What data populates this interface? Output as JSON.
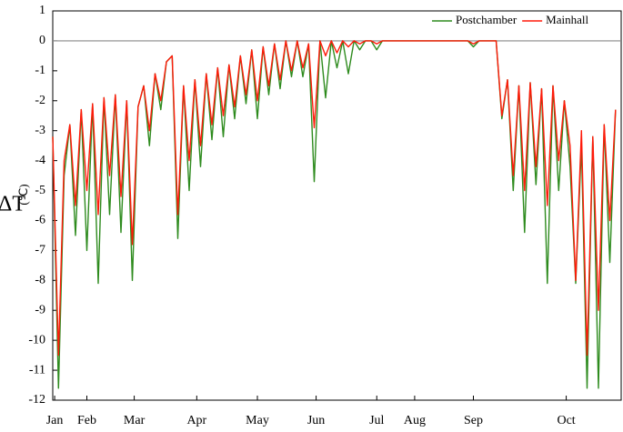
{
  "chart_data": {
    "type": "line",
    "y_label": "ΔT",
    "y_label_unit": "(℃)",
    "x": [
      0,
      3,
      6,
      9,
      12,
      15,
      18,
      21,
      24,
      27,
      30,
      33,
      36,
      39,
      42,
      45,
      48,
      51,
      54,
      57,
      60,
      63,
      66,
      69,
      72,
      75,
      78,
      81,
      84,
      87,
      90,
      93,
      96,
      99,
      102,
      105,
      108,
      111,
      114,
      117,
      120,
      123,
      126,
      129,
      132,
      135,
      138,
      141,
      144,
      147,
      150,
      153,
      156,
      159,
      162,
      165,
      168,
      171,
      174,
      177,
      180,
      183,
      186,
      189,
      192,
      195,
      198,
      201,
      204,
      207,
      210,
      213,
      216,
      219,
      222,
      225,
      228,
      231,
      234,
      237,
      240,
      243,
      246,
      249,
      252,
      255,
      258,
      261,
      264,
      267,
      270,
      273,
      276,
      279,
      282,
      285,
      288,
      291,
      294,
      297
    ],
    "series": [
      {
        "name": "Postchamber",
        "color": "#2e8b1e",
        "values": [
          -3.2,
          -11.6,
          -4.5,
          -2.8,
          -6.5,
          -2.3,
          -7,
          -2.1,
          -8.1,
          -1.9,
          -5.8,
          -1.8,
          -6.4,
          -2,
          -8,
          -2.2,
          -1.5,
          -3.5,
          -1.1,
          -2.3,
          -0.7,
          -0.5,
          -6.6,
          -1.5,
          -5,
          -1.3,
          -4.2,
          -1.1,
          -3.3,
          -0.9,
          -3.2,
          -0.8,
          -2.6,
          -0.5,
          -2.1,
          -0.3,
          -2.6,
          -0.2,
          -1.8,
          -0.1,
          -1.6,
          0,
          -1.2,
          0,
          -1.2,
          -0.1,
          -4.7,
          0,
          -1.9,
          0,
          -0.9,
          0,
          -1.1,
          0,
          -0.3,
          0,
          0,
          -0.3,
          0,
          0,
          0,
          0,
          0,
          0,
          0,
          0,
          0,
          0,
          0,
          0,
          0,
          0,
          0,
          0,
          -0.2,
          0,
          0,
          0,
          0,
          -2.6,
          -1.3,
          -5,
          -1.5,
          -6.4,
          -1.4,
          -4.8,
          -1.6,
          -8.1,
          -1.5,
          -5,
          -2,
          -4.2,
          -8.1,
          -3.5,
          -11.6,
          -3.2,
          -11.6,
          -2.8,
          -7.4,
          -2.3
        ]
      },
      {
        "name": "Mainhall",
        "color": "#ff1a0a",
        "values": [
          -3.2,
          -10.5,
          -4,
          -2.8,
          -5.5,
          -2.3,
          -5,
          -2.1,
          -5.8,
          -1.9,
          -4.5,
          -1.8,
          -5.2,
          -2,
          -6.8,
          -2.2,
          -1.5,
          -3,
          -1.1,
          -2,
          -0.7,
          -0.5,
          -5.8,
          -1.5,
          -4,
          -1.3,
          -3.5,
          -1.1,
          -2.8,
          -0.9,
          -2.5,
          -0.8,
          -2.2,
          -0.5,
          -1.8,
          -0.3,
          -2,
          -0.2,
          -1.5,
          -0.1,
          -1.3,
          0,
          -1,
          0,
          -0.9,
          -0.1,
          -2.9,
          0,
          -0.5,
          0,
          -0.4,
          0,
          -0.2,
          0,
          -0.1,
          0,
          0,
          -0.1,
          0,
          0,
          0,
          0,
          0,
          0,
          0,
          0,
          0,
          0,
          0,
          0,
          0,
          0,
          0,
          0,
          -0.1,
          0,
          0,
          0,
          0,
          -2.5,
          -1.3,
          -4.5,
          -1.5,
          -5,
          -1.4,
          -4.2,
          -1.6,
          -5.5,
          -1.5,
          -4,
          -2,
          -3.5,
          -8,
          -3,
          -10.5,
          -3.2,
          -9,
          -2.8,
          -6,
          -2.3
        ]
      }
    ],
    "xlim": [
      0,
      300
    ],
    "xticks": [
      {
        "value": 1,
        "label": "Jan"
      },
      {
        "value": 18,
        "label": "Feb"
      },
      {
        "value": 43,
        "label": "Mar"
      },
      {
        "value": 76,
        "label": "Apr"
      },
      {
        "value": 108,
        "label": "May"
      },
      {
        "value": 139,
        "label": "Jun"
      },
      {
        "value": 171,
        "label": "Jul"
      },
      {
        "value": 191,
        "label": "Aug"
      },
      {
        "value": 222,
        "label": "Sep"
      },
      {
        "value": 271,
        "label": "Oct"
      }
    ],
    "ylim": [
      -12,
      1
    ],
    "yticks": [
      -12,
      -11,
      -10,
      -9,
      -8,
      -7,
      -6,
      -5,
      -4,
      -3,
      -2,
      -1,
      0,
      1
    ],
    "zero_line": true,
    "legend": "top-right"
  }
}
